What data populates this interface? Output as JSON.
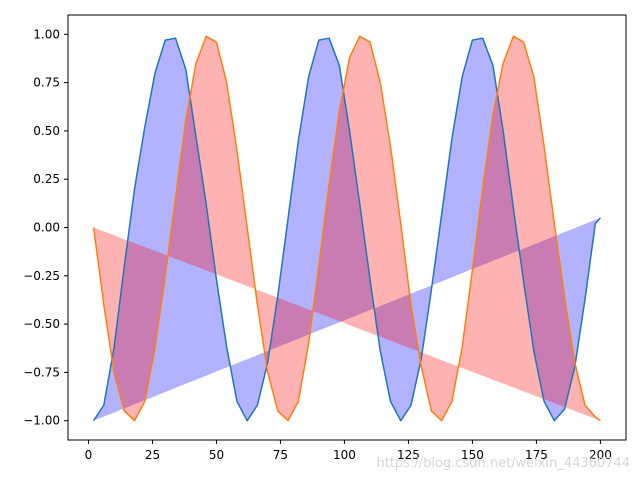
{
  "chart_data": {
    "type": "area",
    "title": "",
    "xlabel": "",
    "ylabel": "",
    "xlim": [
      -8,
      210
    ],
    "ylim": [
      -1.1,
      1.1
    ],
    "grid": false,
    "legend": "none",
    "x_ticks": [
      0,
      25,
      50,
      75,
      100,
      125,
      150,
      175,
      200
    ],
    "x_tick_labels": [
      "0",
      "25",
      "50",
      "75",
      "100",
      "125",
      "150",
      "175",
      "200"
    ],
    "y_ticks": [
      1.0,
      0.75,
      0.5,
      0.25,
      0.0,
      -0.25,
      -0.5,
      -0.75,
      -1.0
    ],
    "y_tick_labels": [
      "1.00",
      "0.75",
      "0.50",
      "0.25",
      "0.00",
      "−0.25",
      "−0.50",
      "−0.75",
      "−1.00"
    ],
    "x": [
      2,
      6,
      10,
      14,
      18,
      22,
      26,
      30,
      34,
      38,
      42,
      46,
      50,
      54,
      58,
      62,
      66,
      70,
      74,
      78,
      82,
      86,
      90,
      94,
      98,
      102,
      106,
      110,
      114,
      118,
      122,
      126,
      130,
      134,
      138,
      142,
      146,
      150,
      154,
      158,
      162,
      166,
      170,
      174,
      178,
      182,
      186,
      190,
      194,
      198,
      200
    ],
    "series": [
      {
        "color": "#1f77b4",
        "fill_color": "#0000ff",
        "fill_alpha": 0.3,
        "values": [
          -1.0,
          -0.92,
          -0.62,
          -0.2,
          0.2,
          0.52,
          0.8,
          0.97,
          0.98,
          0.82,
          0.47,
          0.12,
          -0.27,
          -0.62,
          -0.9,
          -1.0,
          -0.92,
          -0.7,
          -0.35,
          0.05,
          0.45,
          0.78,
          0.97,
          0.98,
          0.84,
          0.5,
          0.12,
          -0.27,
          -0.64,
          -0.9,
          -1.0,
          -0.92,
          -0.68,
          -0.32,
          0.07,
          0.46,
          0.78,
          0.97,
          0.98,
          0.84,
          0.5,
          0.1,
          -0.28,
          -0.64,
          -0.9,
          -1.0,
          -0.94,
          -0.72,
          -0.37,
          0.02,
          0.05
        ]
      },
      {
        "color": "#ff7f0e",
        "fill_color": "#ff0000",
        "fill_alpha": 0.3,
        "values": [
          0.0,
          -0.4,
          -0.75,
          -0.95,
          -1.0,
          -0.9,
          -0.62,
          -0.25,
          0.15,
          0.55,
          0.85,
          0.99,
          0.96,
          0.75,
          0.4,
          0.0,
          -0.4,
          -0.75,
          -0.95,
          -1.0,
          -0.9,
          -0.6,
          -0.2,
          0.22,
          0.6,
          0.88,
          0.99,
          0.96,
          0.75,
          0.42,
          0.02,
          -0.4,
          -0.72,
          -0.95,
          -1.0,
          -0.9,
          -0.62,
          -0.22,
          0.2,
          0.58,
          0.85,
          0.99,
          0.96,
          0.78,
          0.42,
          0.02,
          -0.36,
          -0.7,
          -0.92,
          -0.98,
          -1.0
        ]
      }
    ],
    "baseline": [
      -1.0,
      0.0
    ],
    "fill_between": [
      {
        "series_index": 0,
        "baseline_from": -1.0,
        "baseline_to": 0.05
      },
      {
        "series_index": 1,
        "baseline_from": 0.0,
        "baseline_to": -1.0
      }
    ]
  },
  "watermark": "https://blog.csdn.net/weixin_44360744"
}
